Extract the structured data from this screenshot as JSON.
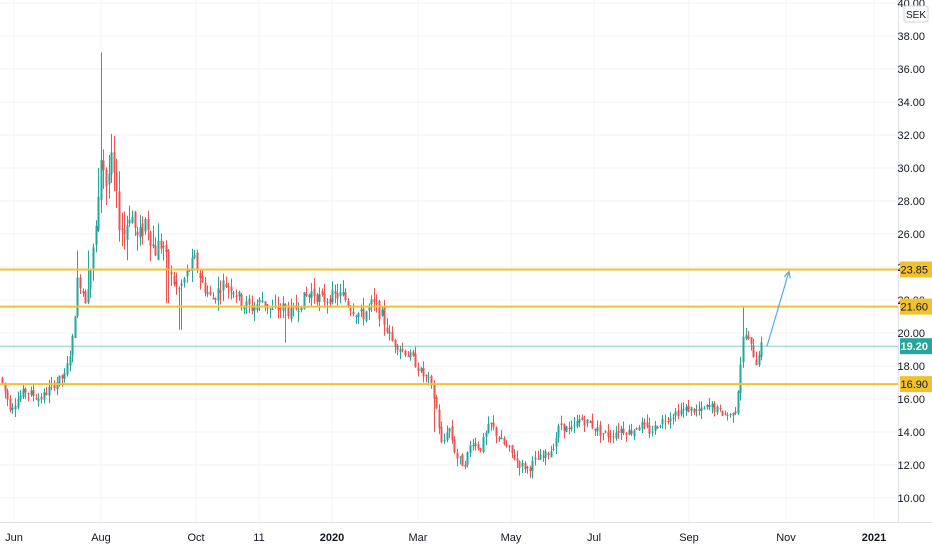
{
  "chart_data": {
    "type": "candlestick",
    "currency": "SEK",
    "y_axis": {
      "ticks": [
        "10.00",
        "12.00",
        "14.00",
        "16.00",
        "18.00",
        "20.00",
        "22.00",
        "24.00",
        "26.00",
        "28.00",
        "30.00",
        "32.00",
        "34.00",
        "36.00",
        "38.00",
        "40.00"
      ],
      "range": [
        9.0,
        40.3
      ],
      "position": "right"
    },
    "x_axis": {
      "ticks": [
        {
          "label": "Jun",
          "bold": false
        },
        {
          "label": "Aug",
          "bold": false
        },
        {
          "label": "Oct",
          "bold": false
        },
        {
          "label": "11",
          "bold": false
        },
        {
          "label": "2020",
          "bold": true
        },
        {
          "label": "Mar",
          "bold": false
        },
        {
          "label": "May",
          "bold": false
        },
        {
          "label": "Jul",
          "bold": false
        },
        {
          "label": "Sep",
          "bold": false
        },
        {
          "label": "Nov",
          "bold": false
        },
        {
          "label": "2021",
          "bold": true
        }
      ]
    },
    "horizontal_levels": [
      {
        "label": "23.85",
        "value": 23.85,
        "color": "#f2c12e"
      },
      {
        "label": "21.60",
        "value": 21.6,
        "color": "#f2c12e"
      },
      {
        "label": "16.90",
        "value": 16.9,
        "color": "#f2c12e"
      }
    ],
    "last_price": {
      "label": "19.20",
      "value": 19.2,
      "color": "#26a69a"
    },
    "projection_arrow": {
      "from": 19.2,
      "to": 23.85,
      "color": "#5aa9e6"
    },
    "colors": {
      "up": "#26a69a",
      "down": "#ef5350",
      "grid": "#f0f3fa"
    },
    "price_path": [
      {
        "x": 0,
        "y": 17.3
      },
      {
        "x": 10,
        "y": 15.5
      },
      {
        "x": 25,
        "y": 16.5
      },
      {
        "x": 40,
        "y": 16.0
      },
      {
        "x": 55,
        "y": 17.0
      },
      {
        "x": 65,
        "y": 17.4
      },
      {
        "x": 72,
        "y": 19.5
      },
      {
        "x": 78,
        "y": 23.5
      },
      {
        "x": 85,
        "y": 22.0
      },
      {
        "x": 92,
        "y": 24.5
      },
      {
        "x": 98,
        "y": 27.5
      },
      {
        "x": 101,
        "y": 31.0
      },
      {
        "x": 106,
        "y": 29.0
      },
      {
        "x": 112,
        "y": 30.5
      },
      {
        "x": 118,
        "y": 27.0
      },
      {
        "x": 124,
        "y": 26.0
      },
      {
        "x": 130,
        "y": 27.5
      },
      {
        "x": 138,
        "y": 25.5
      },
      {
        "x": 146,
        "y": 27.0
      },
      {
        "x": 154,
        "y": 25.0
      },
      {
        "x": 162,
        "y": 25.5
      },
      {
        "x": 170,
        "y": 23.5
      },
      {
        "x": 178,
        "y": 22.5
      },
      {
        "x": 186,
        "y": 23.5
      },
      {
        "x": 194,
        "y": 24.5
      },
      {
        "x": 202,
        "y": 23.0
      },
      {
        "x": 212,
        "y": 22.0
      },
      {
        "x": 222,
        "y": 23.0
      },
      {
        "x": 232,
        "y": 22.8
      },
      {
        "x": 242,
        "y": 21.8
      },
      {
        "x": 252,
        "y": 21.5
      },
      {
        "x": 262,
        "y": 22.0
      },
      {
        "x": 272,
        "y": 21.3
      },
      {
        "x": 282,
        "y": 21.6
      },
      {
        "x": 292,
        "y": 21.2
      },
      {
        "x": 302,
        "y": 22.0
      },
      {
        "x": 312,
        "y": 22.5
      },
      {
        "x": 322,
        "y": 22.0
      },
      {
        "x": 332,
        "y": 22.2
      },
      {
        "x": 342,
        "y": 22.3
      },
      {
        "x": 352,
        "y": 21.5
      },
      {
        "x": 362,
        "y": 21.0
      },
      {
        "x": 372,
        "y": 21.8
      },
      {
        "x": 382,
        "y": 21.0
      },
      {
        "x": 392,
        "y": 19.5
      },
      {
        "x": 402,
        "y": 19.0
      },
      {
        "x": 412,
        "y": 18.5
      },
      {
        "x": 422,
        "y": 17.5
      },
      {
        "x": 430,
        "y": 17.0
      },
      {
        "x": 436,
        "y": 15.5
      },
      {
        "x": 442,
        "y": 13.0
      },
      {
        "x": 448,
        "y": 14.5
      },
      {
        "x": 456,
        "y": 12.5
      },
      {
        "x": 464,
        "y": 12.0
      },
      {
        "x": 472,
        "y": 13.5
      },
      {
        "x": 480,
        "y": 13.0
      },
      {
        "x": 490,
        "y": 14.5
      },
      {
        "x": 500,
        "y": 13.5
      },
      {
        "x": 510,
        "y": 12.8
      },
      {
        "x": 520,
        "y": 12.0
      },
      {
        "x": 528,
        "y": 11.8
      },
      {
        "x": 536,
        "y": 12.3
      },
      {
        "x": 544,
        "y": 12.5
      },
      {
        "x": 552,
        "y": 13.0
      },
      {
        "x": 560,
        "y": 14.5
      },
      {
        "x": 570,
        "y": 14.0
      },
      {
        "x": 580,
        "y": 14.8
      },
      {
        "x": 590,
        "y": 14.5
      },
      {
        "x": 600,
        "y": 14.0
      },
      {
        "x": 610,
        "y": 13.8
      },
      {
        "x": 620,
        "y": 14.2
      },
      {
        "x": 630,
        "y": 14.0
      },
      {
        "x": 640,
        "y": 14.5
      },
      {
        "x": 650,
        "y": 14.0
      },
      {
        "x": 660,
        "y": 14.6
      },
      {
        "x": 670,
        "y": 15.0
      },
      {
        "x": 680,
        "y": 15.3
      },
      {
        "x": 690,
        "y": 15.4
      },
      {
        "x": 700,
        "y": 15.2
      },
      {
        "x": 710,
        "y": 15.6
      },
      {
        "x": 720,
        "y": 15.2
      },
      {
        "x": 730,
        "y": 15.0
      },
      {
        "x": 736,
        "y": 15.5
      },
      {
        "x": 740,
        "y": 18.0
      },
      {
        "x": 744,
        "y": 20.2
      },
      {
        "x": 748,
        "y": 19.5
      },
      {
        "x": 752,
        "y": 19.0
      },
      {
        "x": 756,
        "y": 18.2
      },
      {
        "x": 760,
        "y": 19.2
      }
    ]
  }
}
